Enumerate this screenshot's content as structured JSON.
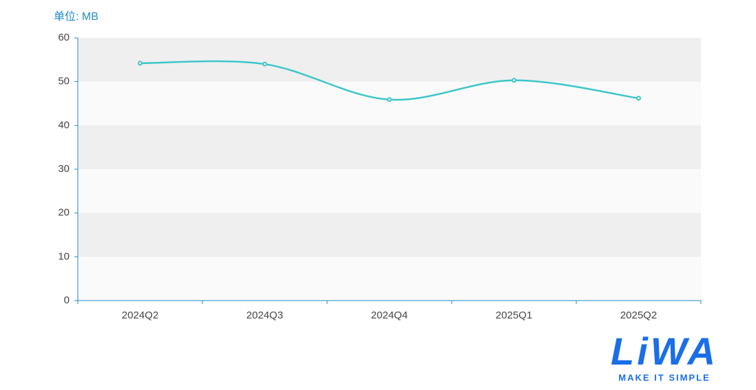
{
  "chart_data": {
    "type": "line",
    "y_axis_label": "单位: MB",
    "categories": [
      "2024Q2",
      "2024Q3",
      "2024Q4",
      "2025Q1",
      "2025Q2"
    ],
    "series": [
      {
        "color": "#3cc6c8",
        "values": [
          54.2,
          54.0,
          45.9,
          50.3,
          46.2
        ]
      }
    ],
    "ylim": [
      0,
      60
    ],
    "yticks": [
      0,
      10,
      20,
      30,
      40,
      50,
      60
    ],
    "smooth": true,
    "split_area_colors": [
      "#fafafa",
      "#efefef"
    ],
    "axis_color": "#1f8ac9"
  },
  "logo": {
    "brand": "LiWA",
    "tagline": "MAKE IT SIMPLE"
  }
}
